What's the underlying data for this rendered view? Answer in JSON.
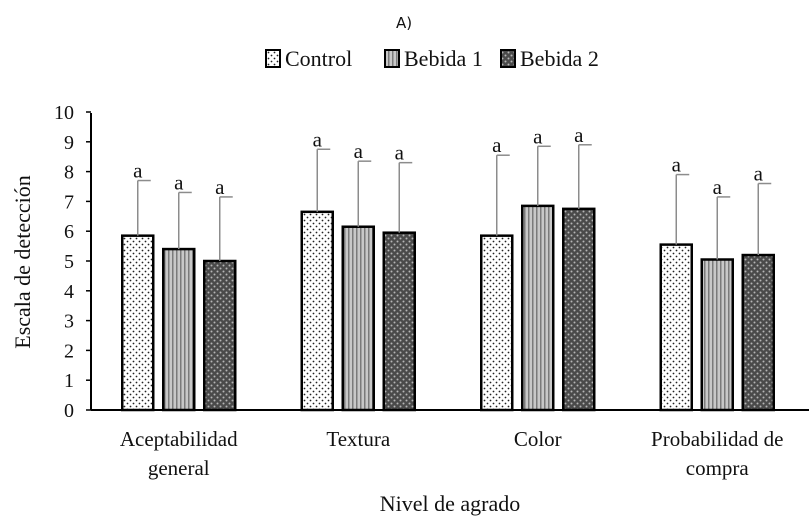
{
  "chart_data": {
    "type": "bar",
    "panel_label": "A)",
    "title": "",
    "xlabel": "Nivel de agrado",
    "ylabel": "Escala de detección",
    "ylim": [
      0,
      10
    ],
    "yticks": [
      "0",
      "1",
      "2",
      "3",
      "4",
      "5",
      "6",
      "7",
      "8",
      "9",
      "10"
    ],
    "grid": false,
    "legend_position": "top-center",
    "categories": [
      [
        "Aceptabilidad",
        "general"
      ],
      [
        "Textura"
      ],
      [
        "Color"
      ],
      [
        "Probabilidad de",
        "compra"
      ]
    ],
    "series": [
      {
        "name": "Control",
        "pattern": "dots",
        "values": [
          5.85,
          6.65,
          5.85,
          5.55
        ],
        "error": [
          1.85,
          2.1,
          2.7,
          2.35
        ],
        "labels": [
          "a",
          "a",
          "a",
          "a"
        ]
      },
      {
        "name": "Bebida 1",
        "pattern": "stripes",
        "values": [
          5.4,
          6.15,
          6.85,
          5.05
        ],
        "error": [
          1.9,
          2.2,
          2.0,
          2.1
        ],
        "labels": [
          "a",
          "a",
          "a",
          "a"
        ]
      },
      {
        "name": "Bebida 2",
        "pattern": "checker",
        "values": [
          5.0,
          5.95,
          6.75,
          5.2
        ],
        "error": [
          2.15,
          2.35,
          2.15,
          2.4
        ],
        "labels": [
          "a",
          "a",
          "a",
          "a"
        ]
      }
    ],
    "colors": {
      "axis": "#000000",
      "error": "#8c8c8c",
      "stripe_bg": "#c8c8c8",
      "checker_bg": "#4a4a4a"
    }
  }
}
